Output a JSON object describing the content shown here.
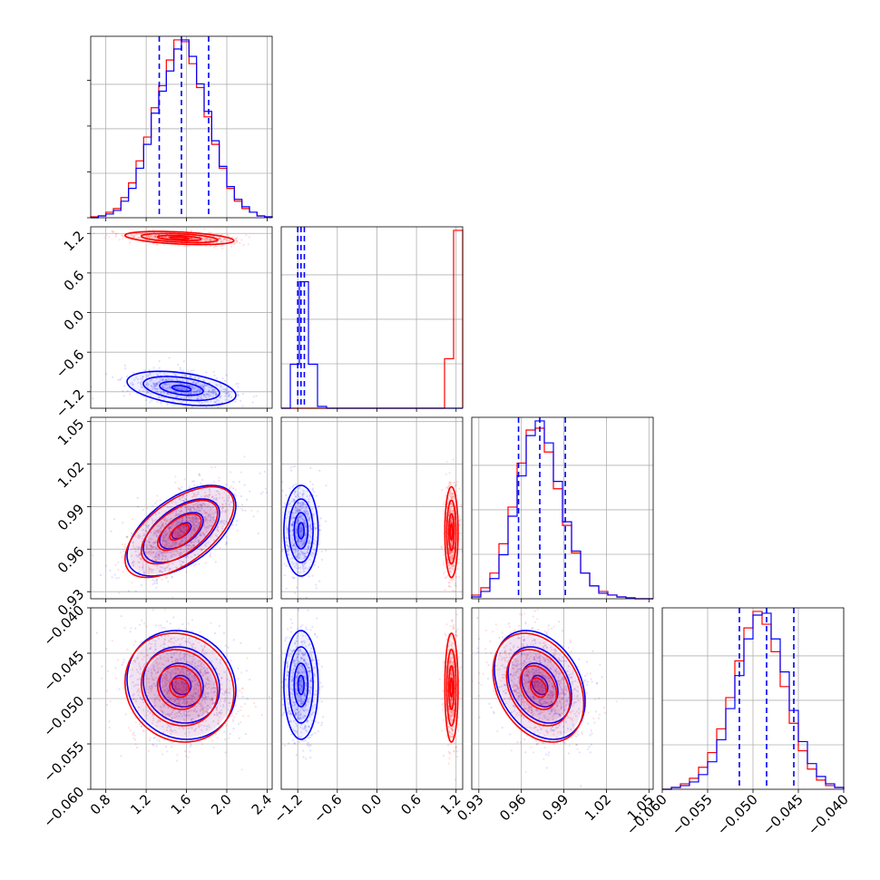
{
  "colors": {
    "series_a": "#0000ff",
    "series_b": "#ff0000",
    "grid": "#b0b0b0",
    "frame": "#000000"
  },
  "chart_data": {
    "type": "corner",
    "grid": true,
    "n_params": 4,
    "series": [
      {
        "color": "#0000ff",
        "quantiles": [
          [
            1.33,
            1.55,
            1.82
          ],
          [
            -1.2,
            -1.15,
            -1.1
          ],
          [
            0.958,
            0.973,
            0.991
          ],
          [
            -0.0515,
            -0.0485,
            -0.0455
          ]
        ],
        "means": [
          1.55,
          -1.15,
          0.973,
          -0.0485
        ],
        "sigmas": [
          0.27,
          0.13,
          0.016,
          0.003
        ],
        "correlations": [
          [
            1,
            -0.4,
            0.55,
            -0.1
          ],
          [
            -0.4,
            1,
            0,
            0
          ],
          [
            0.55,
            0,
            1,
            -0.3
          ],
          [
            -0.1,
            0,
            -0.3,
            1
          ]
        ]
      },
      {
        "color": "#ff0000",
        "means": [
          1.53,
          1.13,
          0.972,
          -0.0488
        ],
        "sigmas": [
          0.27,
          0.05,
          0.016,
          0.003
        ],
        "correlations": [
          [
            1,
            -0.4,
            0.6,
            -0.1
          ],
          [
            -0.4,
            1,
            0,
            0
          ],
          [
            0.6,
            0,
            1,
            -0.3
          ],
          [
            -0.1,
            0,
            -0.3,
            1
          ]
        ]
      }
    ],
    "axes": [
      {
        "range": [
          0.65,
          2.45
        ],
        "ticks": [
          0.8,
          1.2,
          1.6,
          2.0,
          2.4
        ],
        "tick_labels": [
          "0.8",
          "1.2",
          "1.6",
          "2.0",
          "2.4"
        ]
      },
      {
        "range": [
          -1.45,
          1.3
        ],
        "ticks": [
          -1.2,
          -0.6,
          0.0,
          0.6,
          1.2
        ],
        "tick_labels": [
          "−1.2",
          "−0.6",
          "0.0",
          "0.6",
          "1.2"
        ]
      },
      {
        "range": [
          0.925,
          1.053
        ],
        "ticks": [
          0.93,
          0.96,
          0.99,
          1.02,
          1.05
        ],
        "tick_labels": [
          "0.93",
          "0.96",
          "0.99",
          "1.02",
          "1.05"
        ]
      },
      {
        "range": [
          -0.06,
          -0.04
        ],
        "ticks": [
          -0.06,
          -0.055,
          -0.05,
          -0.045,
          -0.04
        ],
        "tick_labels": [
          "−0.060",
          "−0.055",
          "−0.050",
          "−0.045",
          "−0.040"
        ]
      }
    ],
    "histograms": [
      {
        "bins": [
          0.65,
          0.725,
          0.8,
          0.875,
          0.95,
          1.025,
          1.1,
          1.175,
          1.25,
          1.325,
          1.4,
          1.475,
          1.55,
          1.625,
          1.7,
          1.775,
          1.85,
          1.925,
          2.0,
          2.075,
          2.15,
          2.225,
          2.3,
          2.375,
          2.45
        ],
        "series_a": [
          0.0,
          1,
          2,
          4,
          9,
          16,
          27,
          40,
          57,
          69,
          80,
          92,
          97,
          88,
          73,
          58,
          42,
          28,
          17,
          10,
          6,
          3,
          1,
          0.5
        ],
        "series_b": [
          0.5,
          1,
          3,
          5,
          11,
          19,
          31,
          44,
          60,
          72,
          86,
          97,
          96,
          84,
          71,
          55,
          40,
          27,
          16,
          9,
          5,
          3,
          1,
          0.5
        ]
      },
      {
        "bins": [
          -1.45,
          -1.3125,
          -1.175,
          -1.0375,
          -0.9,
          -0.7625,
          -0.625,
          -0.4875,
          -0.35,
          -0.2125,
          -0.075,
          0.0625,
          0.2,
          0.3375,
          0.475,
          0.6125,
          0.75,
          0.8875,
          1.025,
          1.1625,
          1.3
        ],
        "series_a": [
          0,
          24,
          69,
          24,
          1,
          0,
          0,
          0,
          0,
          0,
          0,
          0,
          0,
          0,
          0,
          0,
          0,
          0,
          0,
          0
        ],
        "series_b": [
          0,
          0,
          0,
          0,
          0,
          0,
          0,
          0,
          0,
          0,
          0,
          0,
          0,
          0,
          0,
          0,
          0,
          0,
          27,
          97
        ]
      },
      {
        "bins": [
          0.925,
          0.9314,
          0.9378,
          0.9442,
          0.9506,
          0.957,
          0.9634,
          0.9698,
          0.9762,
          0.9826,
          0.989,
          0.9954,
          1.0018,
          1.0082,
          1.0146,
          1.021,
          1.0274,
          1.0338,
          1.0402,
          1.0466,
          1.053
        ],
        "series_a": [
          1,
          4,
          11,
          24,
          45,
          67,
          89,
          97,
          85,
          64,
          42,
          26,
          14,
          7,
          3,
          2,
          1,
          0.5,
          0,
          0
        ],
        "series_b": [
          2,
          6,
          14,
          30,
          50,
          74,
          92,
          93,
          80,
          60,
          40,
          25,
          14,
          7,
          4,
          2,
          1,
          0.5,
          0,
          0
        ]
      },
      {
        "bins": [
          -0.06,
          -0.059,
          -0.058,
          -0.057,
          -0.056,
          -0.055,
          -0.054,
          -0.053,
          -0.052,
          -0.051,
          -0.05,
          -0.049,
          -0.048,
          -0.047,
          -0.046,
          -0.045,
          -0.044,
          -0.043,
          -0.042,
          -0.041,
          -0.04
        ],
        "series_a": [
          0,
          1,
          2,
          4,
          8,
          15,
          27,
          44,
          62,
          82,
          95,
          96,
          82,
          64,
          43,
          26,
          14,
          7,
          3,
          1
        ],
        "series_b": [
          0,
          1,
          3,
          6,
          12,
          20,
          33,
          50,
          70,
          88,
          97,
          90,
          75,
          56,
          36,
          21,
          11,
          5,
          2,
          1
        ]
      }
    ]
  }
}
